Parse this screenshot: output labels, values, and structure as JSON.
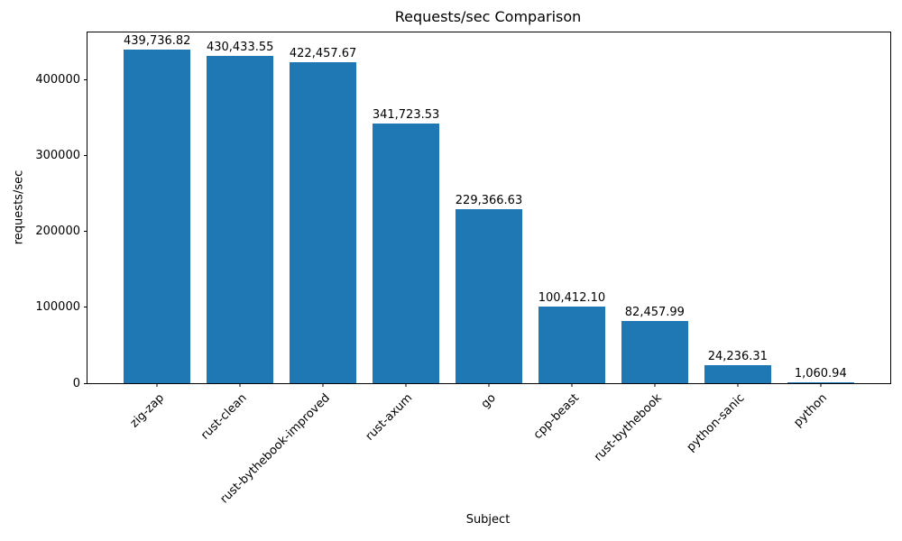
{
  "chart_data": {
    "type": "bar",
    "title": "Requests/sec Comparison",
    "xlabel": "Subject",
    "ylabel": "requests/sec",
    "categories": [
      "zig-zap",
      "rust-clean",
      "rust-bythebook-improved",
      "rust-axum",
      "go",
      "cpp-beast",
      "rust-bythebook",
      "python-sanic",
      "python"
    ],
    "values": [
      439736.82,
      430433.55,
      422457.67,
      341723.53,
      229366.63,
      100412.1,
      82457.99,
      24236.31,
      1060.94
    ],
    "value_labels": [
      "439,736.82",
      "430,433.55",
      "422,457.67",
      "341,723.53",
      "229,366.63",
      "100,412.10",
      "82,457.99",
      "24,236.31",
      "1,060.94"
    ],
    "bar_color": "#1f77b4",
    "bar_width_ratio": 0.8,
    "x_margin_units": 0.84,
    "ylim": [
      0,
      461723.66
    ],
    "yticks": [
      0,
      100000,
      200000,
      300000,
      400000
    ],
    "ytick_labels": [
      "0",
      "100000",
      "200000",
      "300000",
      "400000"
    ],
    "grid": false,
    "legend": null
  }
}
